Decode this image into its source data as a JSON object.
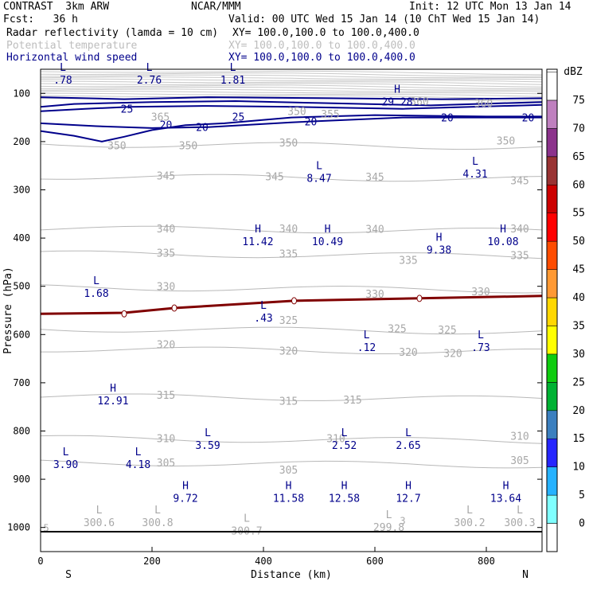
{
  "header": {
    "model": "CONTRAST  3km ARW",
    "org": "NCAR/MMM",
    "init": "Init: 12 UTC Mon 13 Jan 14",
    "fcst": "Fcst:   36 h",
    "valid": "Valid: 00 UTC Wed 15 Jan 14 (10 ChT Wed 15 Jan 14)",
    "fields": [
      {
        "name": "Radar reflectivity (lamda = 10 cm)",
        "xy": "XY= 100.0,100.0 to 100.0,400.0",
        "color": "#000000"
      },
      {
        "name": "Potential temperature",
        "xy": "XY= 100.0,100.0 to 100.0,400.0",
        "color": "#bdbdbd"
      },
      {
        "name": "Horizontal wind speed",
        "xy": "XY= 100.0,100.0 to 100.0,400.0",
        "color": "#00008b"
      }
    ]
  },
  "chart_data": {
    "type": "cross-section contour",
    "xlabel": "Distance (km)",
    "ylabel": "Pressure (hPa)",
    "xlim": [
      0,
      900
    ],
    "ylim": [
      1050,
      50
    ],
    "xticks": [
      0,
      200,
      400,
      600,
      800
    ],
    "yticks": [
      100,
      200,
      300,
      400,
      500,
      600,
      700,
      800,
      900,
      1000
    ],
    "x_end_labels": {
      "left": "S",
      "right": "N"
    },
    "colorbar": {
      "title": "dBZ",
      "levels": [
        "0",
        "5",
        "10",
        "15",
        "20",
        "25",
        "30",
        "35",
        "40",
        "45",
        "50",
        "55",
        "60",
        "65",
        "70",
        "75"
      ],
      "colors": [
        "#ffffff",
        "#7fffff",
        "#26b2ff",
        "#2626ff",
        "#3b7fbf",
        "#00b233",
        "#0fcc0f",
        "#ffff00",
        "#ffd700",
        "#ff9933",
        "#ff4c00",
        "#ff0000",
        "#cc0000",
        "#993333",
        "#8c338c",
        "#bf80bf",
        "#ffffff"
      ]
    },
    "theta_labels": [
      {
        "x": 137,
        "p": 208,
        "v": "350"
      },
      {
        "x": 265,
        "p": 208,
        "v": "350"
      },
      {
        "x": 445,
        "p": 202,
        "v": "350"
      },
      {
        "x": 835,
        "p": 198,
        "v": "350"
      },
      {
        "x": 225,
        "p": 270,
        "v": "345"
      },
      {
        "x": 420,
        "p": 272,
        "v": "345"
      },
      {
        "x": 600,
        "p": 273,
        "v": "345"
      },
      {
        "x": 860,
        "p": 280,
        "v": "345"
      },
      {
        "x": 225,
        "p": 380,
        "v": "340"
      },
      {
        "x": 445,
        "p": 380,
        "v": "340"
      },
      {
        "x": 600,
        "p": 381,
        "v": "340"
      },
      {
        "x": 860,
        "p": 380,
        "v": "340"
      },
      {
        "x": 225,
        "p": 430,
        "v": "335"
      },
      {
        "x": 445,
        "p": 432,
        "v": "335"
      },
      {
        "x": 660,
        "p": 445,
        "v": "335"
      },
      {
        "x": 860,
        "p": 435,
        "v": "335"
      },
      {
        "x": 225,
        "p": 500,
        "v": "330"
      },
      {
        "x": 600,
        "p": 515,
        "v": "330"
      },
      {
        "x": 790,
        "p": 510,
        "v": "330"
      },
      {
        "x": 445,
        "p": 570,
        "v": "325"
      },
      {
        "x": 640,
        "p": 587,
        "v": "325"
      },
      {
        "x": 730,
        "p": 590,
        "v": "325"
      },
      {
        "x": 225,
        "p": 620,
        "v": "320"
      },
      {
        "x": 445,
        "p": 633,
        "v": "320"
      },
      {
        "x": 660,
        "p": 636,
        "v": "320"
      },
      {
        "x": 740,
        "p": 638,
        "v": "320"
      },
      {
        "x": 225,
        "p": 725,
        "v": "315"
      },
      {
        "x": 445,
        "p": 737,
        "v": "315"
      },
      {
        "x": 560,
        "p": 735,
        "v": "315"
      },
      {
        "x": 225,
        "p": 815,
        "v": "310"
      },
      {
        "x": 530,
        "p": 815,
        "v": "310"
      },
      {
        "x": 860,
        "p": 810,
        "v": "310"
      },
      {
        "x": 225,
        "p": 865,
        "v": "305"
      },
      {
        "x": 445,
        "p": 880,
        "v": "305"
      },
      {
        "x": 860,
        "p": 860,
        "v": "305"
      },
      {
        "x": 460,
        "p": 137,
        "v": "350"
      },
      {
        "x": 520,
        "p": 142,
        "v": "355"
      },
      {
        "x": 215,
        "p": 148,
        "v": "365"
      },
      {
        "x": 680,
        "p": 116,
        "v": "360"
      },
      {
        "x": 795,
        "p": 120,
        "v": "360"
      }
    ],
    "theta_extrema": [
      {
        "k": "L",
        "x": 105,
        "p": 977,
        "v": "300.6"
      },
      {
        "k": "L",
        "x": 210,
        "p": 977,
        "v": "300.8"
      },
      {
        "k": "L",
        "x": 370,
        "p": 995,
        "v": "300.7"
      },
      {
        "k": "L",
        "x": 625,
        "p": 987,
        "v": "299.8"
      },
      {
        "k": "L",
        "x": 770,
        "p": 977,
        "v": "300.2"
      },
      {
        "k": "L",
        "x": 860,
        "p": 977,
        "v": "300.3"
      }
    ],
    "wind_contours": [
      {
        "v": "25",
        "label_pos": [
          {
            "x": 155,
            "p": 132
          },
          {
            "x": 355,
            "p": 148
          }
        ]
      },
      {
        "v": "20",
        "label_pos": [
          {
            "x": 225,
            "p": 165
          },
          {
            "x": 290,
            "p": 170
          },
          {
            "x": 485,
            "p": 158
          },
          {
            "x": 730,
            "p": 150
          },
          {
            "x": 875,
            "p": 150
          }
        ]
      }
    ],
    "wind_extrema": [
      {
        "k": "L",
        "x": 40,
        "p": 60,
        "v": "78",
        "prefix": "."
      },
      {
        "k": "L",
        "x": 195,
        "p": 60,
        "v": "2.76"
      },
      {
        "k": "L",
        "x": 345,
        "p": 60,
        "v": "1.81"
      },
      {
        "k": "H",
        "x": 640,
        "p": 105,
        "v": "29.28"
      },
      {
        "k": "L",
        "x": 500,
        "p": 264,
        "v": "8.47"
      },
      {
        "k": "L",
        "x": 780,
        "p": 255,
        "v": "4.31"
      },
      {
        "k": "H",
        "x": 390,
        "p": 395,
        "v": "11.42"
      },
      {
        "k": "H",
        "x": 515,
        "p": 395,
        "v": "10.49"
      },
      {
        "k": "H",
        "x": 715,
        "p": 412,
        "v": "9.38"
      },
      {
        "k": "H",
        "x": 830,
        "p": 395,
        "v": "10.08"
      },
      {
        "k": "L",
        "x": 100,
        "p": 502,
        "v": "1.68"
      },
      {
        "k": "L",
        "x": 400,
        "p": 553,
        "v": "43",
        "prefix": "."
      },
      {
        "k": "L",
        "x": 585,
        "p": 614,
        "v": "12",
        "prefix": "."
      },
      {
        "k": "L",
        "x": 790,
        "p": 614,
        "v": "73",
        "prefix": "."
      },
      {
        "k": "H",
        "x": 130,
        "p": 725,
        "v": "12.91"
      },
      {
        "k": "L",
        "x": 300,
        "p": 817,
        "v": "3.59"
      },
      {
        "k": "L",
        "x": 545,
        "p": 817,
        "v": "2.52"
      },
      {
        "k": "L",
        "x": 660,
        "p": 817,
        "v": "2.65"
      },
      {
        "k": "L",
        "x": 45,
        "p": 857,
        "v": "3.90"
      },
      {
        "k": "L",
        "x": 175,
        "p": 857,
        "v": "4.18"
      },
      {
        "k": "H",
        "x": 260,
        "p": 927,
        "v": "9.72"
      },
      {
        "k": "H",
        "x": 445,
        "p": 927,
        "v": "11.58"
      },
      {
        "k": "H",
        "x": 545,
        "p": 927,
        "v": "12.58"
      },
      {
        "k": "H",
        "x": 660,
        "p": 927,
        "v": "12.7"
      },
      {
        "k": "H",
        "x": 835,
        "p": 927,
        "v": "13.64"
      }
    ],
    "zero_line_points": [
      [
        0,
        557
      ],
      [
        150,
        555
      ],
      [
        240,
        545
      ],
      [
        455,
        530
      ],
      [
        680,
        525
      ],
      [
        900,
        520
      ]
    ],
    "zero_line_markers": [
      {
        "x": 150,
        "p": 557
      },
      {
        "x": 240,
        "p": 545
      },
      {
        "x": 455,
        "p": 530
      },
      {
        "x": 680,
        "p": 525
      }
    ],
    "left_edge_labels": [
      {
        "x": 5,
        "p": 1000,
        "v": "5",
        "prefix": "."
      },
      {
        "x": 650,
        "p": 985,
        "v": "3"
      }
    ]
  }
}
